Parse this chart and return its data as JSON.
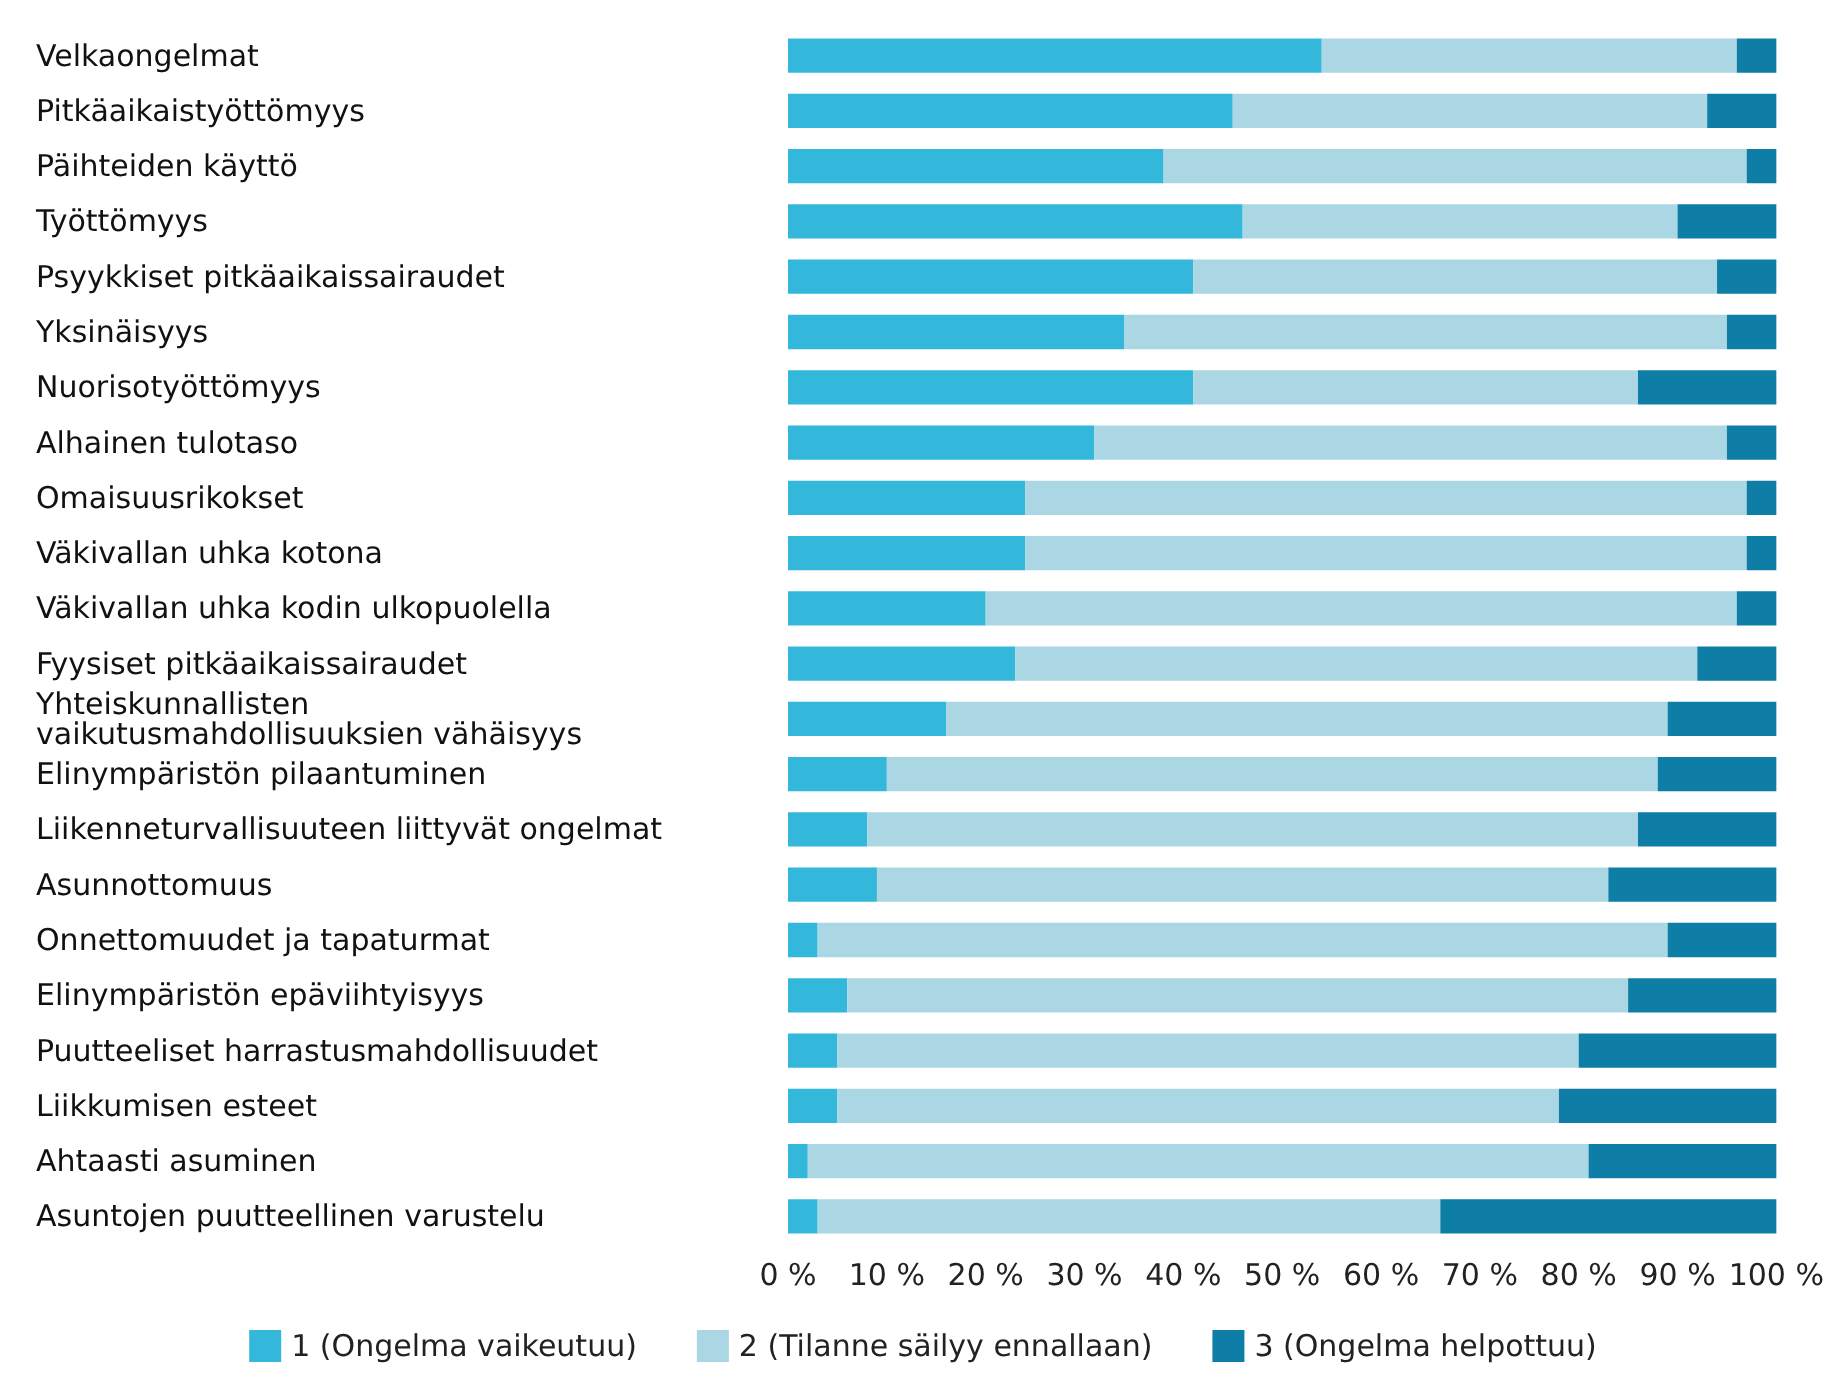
{
  "chart_data": {
    "type": "bar",
    "orientation": "horizontal",
    "stacked": true,
    "categories": [
      "Velkaongelmat",
      "Pitkäaikaistyöttömyys",
      "Päihteiden käyttö",
      "Työttömyys",
      "Psyykkiset pitkäaikaissairaudet",
      "Yksinäisyys",
      "Nuorisotyöttömyys",
      "Alhainen tulotaso",
      "Omaisuusrikokset",
      "Väkivallan uhka kotona",
      "Väkivallan uhka kodin ulkopuolella",
      "Fyysiset pitkäaikaissairaudet",
      "Yhteiskunnallisten\nvaikutusmahdollisuuksien vähäisyys",
      "Elinympäristön pilaantuminen",
      "Liikenneturvallisuuteen liittyvät ongelmat",
      "Asunnottomuus",
      "Onnettomuudet ja tapaturmat",
      "Elinympäristön epäviihtyisyys",
      "Puutteeliset harrastusmahdollisuudet",
      "Liikkumisen esteet",
      "Ahtaasti asuminen",
      "Asuntojen puutteellinen varustelu"
    ],
    "series": [
      {
        "name": "1 (Ongelma vaikeutuu)",
        "color": "#33b8dc",
        "values": [
          54,
          45,
          38,
          46,
          41,
          34,
          41,
          31,
          24,
          24,
          20,
          23,
          16,
          10,
          8,
          9,
          3,
          6,
          5,
          5,
          2,
          3
        ]
      },
      {
        "name": "2 (Tilanne säilyy ennallaan)",
        "color": "#abd6e3",
        "values": [
          42,
          48,
          59,
          44,
          53,
          61,
          45,
          64,
          73,
          73,
          76,
          69,
          73,
          78,
          78,
          74,
          86,
          79,
          75,
          73,
          79,
          63
        ]
      },
      {
        "name": "3 (Ongelma helpottuu)",
        "color": "#0e7ea6",
        "values": [
          4,
          7,
          3,
          10,
          6,
          5,
          14,
          5,
          3,
          3,
          4,
          8,
          11,
          12,
          14,
          17,
          11,
          15,
          20,
          22,
          19,
          34
        ]
      }
    ],
    "xlim": [
      0,
      100
    ],
    "xticks": [
      {
        "value": 0,
        "label": "0 %"
      },
      {
        "value": 10,
        "label": "10 %"
      },
      {
        "value": 20,
        "label": "20 %"
      },
      {
        "value": 30,
        "label": "30 %"
      },
      {
        "value": 40,
        "label": "40 %"
      },
      {
        "value": 50,
        "label": "50 %"
      },
      {
        "value": 60,
        "label": "60 %"
      },
      {
        "value": 70,
        "label": "70 %"
      },
      {
        "value": 80,
        "label": "80 %"
      },
      {
        "value": 90,
        "label": "90 %"
      },
      {
        "value": 100,
        "label": "100 %"
      }
    ],
    "legend": "bottom"
  }
}
